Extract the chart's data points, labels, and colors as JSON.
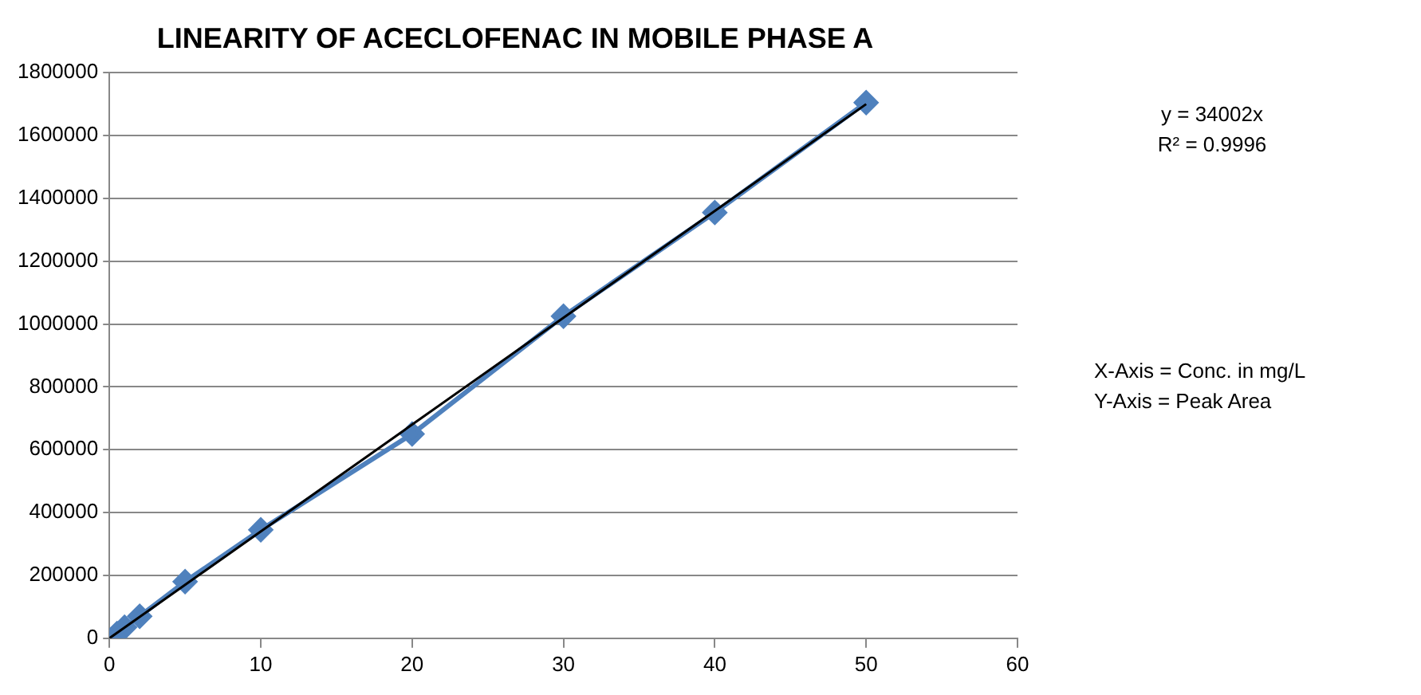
{
  "chart_data": {
    "type": "scatter",
    "title": "LINEARITY OF ACECLOFENAC IN MOBILE PHASE A",
    "series": [
      {
        "type": "line",
        "color": "#4f81bd",
        "marker": "diamond",
        "x": [
          0.5,
          1,
          2,
          5,
          10,
          20,
          30,
          40,
          50
        ],
        "values": [
          15000,
          35000,
          70000,
          180000,
          345000,
          650000,
          1025000,
          1355000,
          1705000
        ]
      },
      {
        "type": "line",
        "color": "#000000",
        "marker": "none",
        "x": [
          0,
          50
        ],
        "values": [
          0,
          1700000
        ]
      }
    ],
    "xlim": [
      0,
      60
    ],
    "xticks": [
      0,
      10,
      20,
      30,
      40,
      50,
      60
    ],
    "ylim": [
      0,
      1800000
    ],
    "yticks": [
      0,
      200000,
      400000,
      600000,
      800000,
      1000000,
      1200000,
      1400000,
      1600000,
      1800000
    ],
    "grid": "y",
    "annotations": [
      "y = 34002x\nR² = 0.9996",
      "X-Axis = Conc. in mg/L\nY-Axis = Peak Area"
    ]
  }
}
